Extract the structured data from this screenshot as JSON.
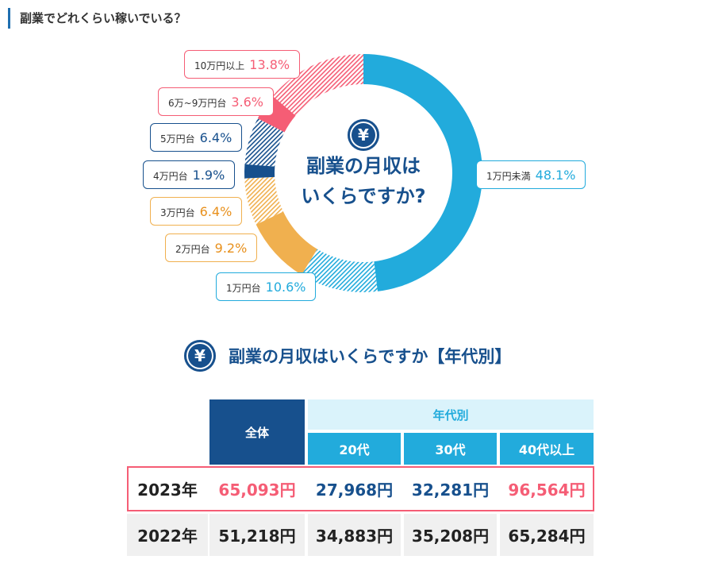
{
  "header": {
    "title": "副業でどれくらい稼いでいる？"
  },
  "colors": {
    "blue": "#22abdc",
    "orange": "#f0b04f",
    "navy": "#17508d",
    "pink": "#f55d75"
  },
  "chart_data": {
    "type": "pie",
    "donut": true,
    "center_icon": "yen-icon",
    "center_text": [
      "副業の月収は",
      "いくらですか?"
    ],
    "slices": [
      {
        "label": "1万円未満",
        "value": 48.1,
        "display": "48.1%",
        "color": "#22abdc",
        "hatched": false
      },
      {
        "label": "1万円台",
        "value": 10.6,
        "display": "10.6%",
        "color": "#22abdc",
        "hatched": true
      },
      {
        "label": "2万円台",
        "value": 9.2,
        "display": "9.2%",
        "color": "#f0b04f",
        "hatched": false
      },
      {
        "label": "3万円台",
        "value": 6.4,
        "display": "6.4%",
        "color": "#f0b04f",
        "hatched": true
      },
      {
        "label": "4万円台",
        "value": 1.9,
        "display": "1.9%",
        "color": "#17508d",
        "hatched": false
      },
      {
        "label": "5万円台",
        "value": 6.4,
        "display": "6.4%",
        "color": "#17508d",
        "hatched": true
      },
      {
        "label": "6万~9万円台",
        "value": 3.6,
        "display": "3.6%",
        "color": "#f55d75",
        "hatched": false
      },
      {
        "label": "10万円以上",
        "value": 13.8,
        "display": "13.8%",
        "color": "#f55d75",
        "hatched": true
      }
    ]
  },
  "table": {
    "title": "副業の月収はいくらですか【年代別】",
    "icon": "yen-icon",
    "overall": "全体",
    "group": "年代別",
    "ages": [
      "20代",
      "30代",
      "40代以上"
    ],
    "rows": [
      {
        "year": "2023年",
        "values": [
          "65,093円",
          "27,968円",
          "32,281円",
          "96,564円"
        ],
        "highlight": true
      },
      {
        "year": "2022年",
        "values": [
          "51,218円",
          "34,883円",
          "35,208円",
          "65,284円"
        ],
        "highlight": false
      }
    ]
  }
}
